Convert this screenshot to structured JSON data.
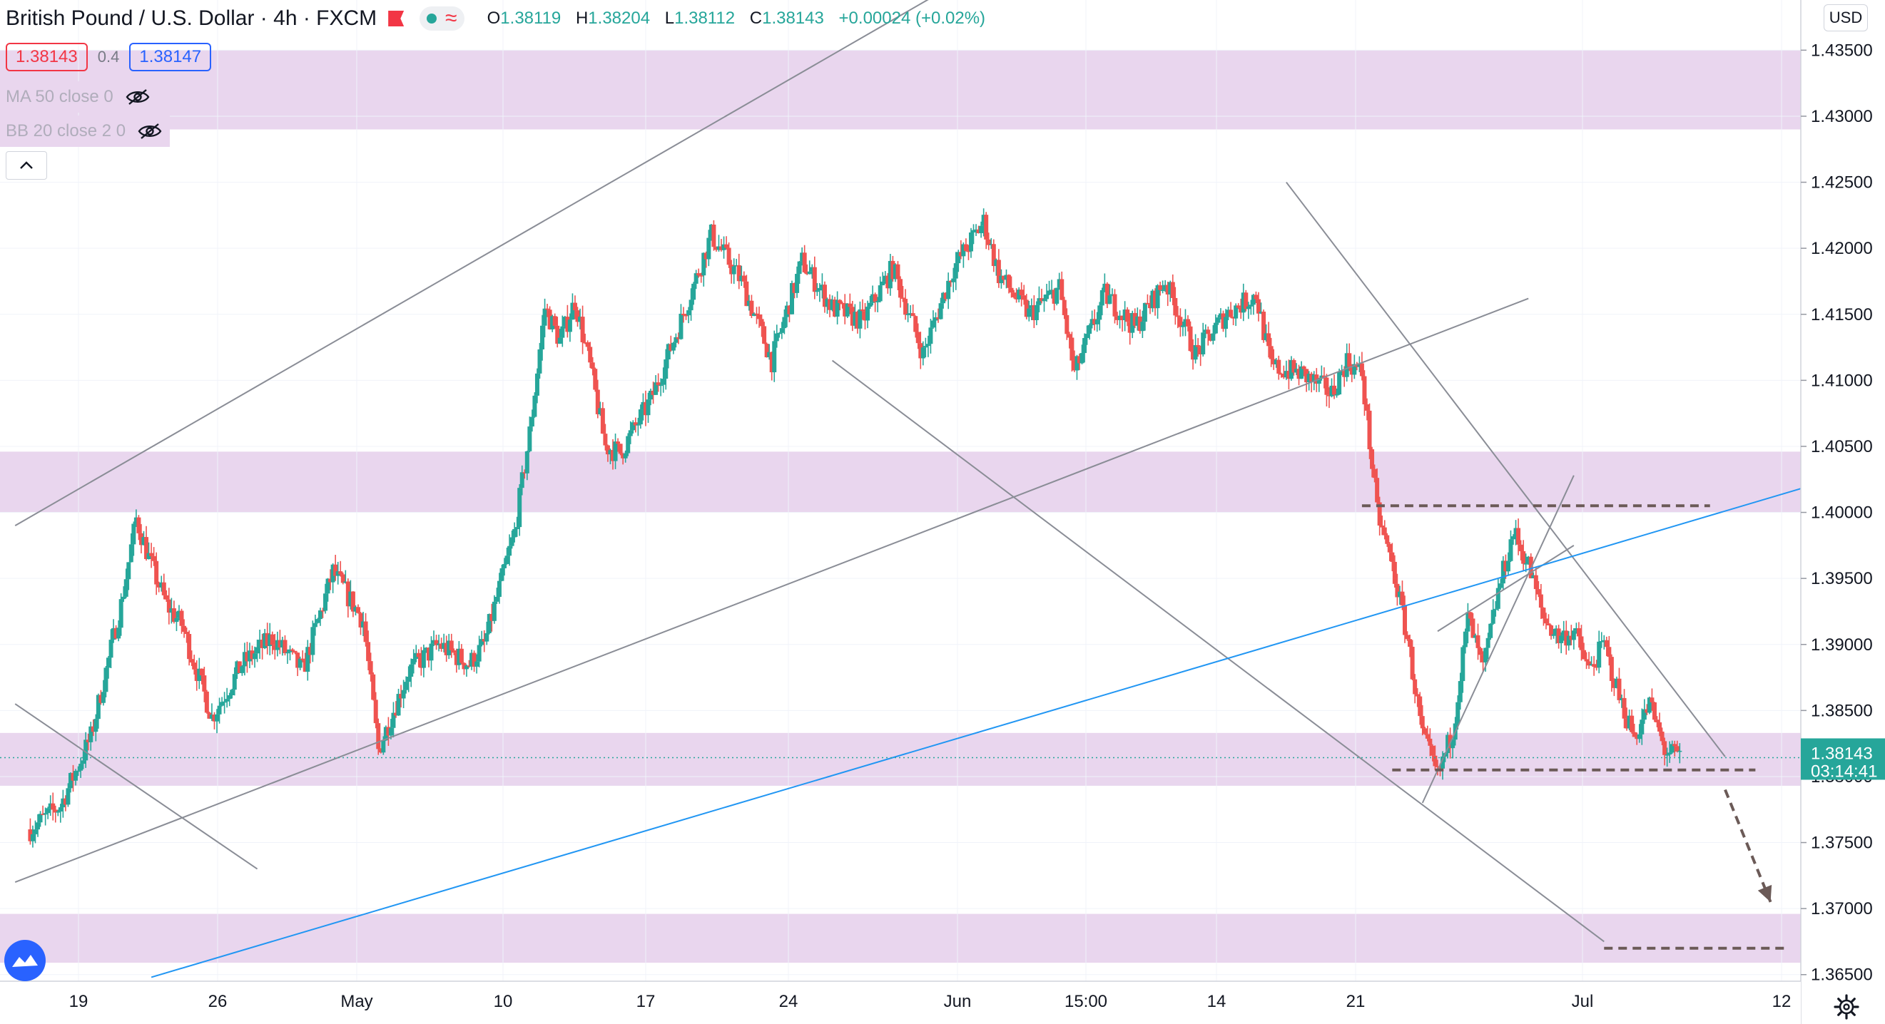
{
  "header": {
    "title": "British Pound / U.S. Dollar · 4h · FXCM",
    "ohlc": [
      {
        "key": "O",
        "value": "1.38119"
      },
      {
        "key": "H",
        "value": "1.38204"
      },
      {
        "key": "L",
        "value": "1.38112"
      },
      {
        "key": "C",
        "value": "1.38143"
      }
    ],
    "change": "+0.00024 (+0.02%)",
    "wave_glyph": "≈",
    "flag_icon": "flag-icon",
    "status_icon": "market-open-dot-icon"
  },
  "trade": {
    "sell_price": "1.38143",
    "spread": "0.4",
    "buy_price": "1.38147"
  },
  "indicators": [
    {
      "label": "MA 50 close 0",
      "icon": "eye-hidden-icon"
    },
    {
      "label": "BB 20 close 2 0",
      "icon": "eye-hidden-icon"
    }
  ],
  "currency": "USD",
  "colors": {
    "up": "#26a69a",
    "down": "#ef5350",
    "zone": "#e9d6ee",
    "trendline": "#9598a1",
    "blue_line": "#2196f3",
    "dashed": "#6b5a57",
    "price_label_bg": "#26a69a"
  },
  "chart_data": {
    "type": "candlestick",
    "title": "British Pound / U.S. Dollar · 4h · FXCM",
    "x_ticks": [
      "19",
      "26",
      "May",
      "10",
      "17",
      "24",
      "Jun",
      "15:00",
      "14",
      "21",
      "Jul",
      "12"
    ],
    "y_ticks": [
      "1.43500",
      "1.43000",
      "1.42500",
      "1.42000",
      "1.41500",
      "1.41000",
      "1.40500",
      "1.40000",
      "1.39500",
      "1.39000",
      "1.38500",
      "1.38000",
      "1.37500",
      "1.37000",
      "1.36500"
    ],
    "y_range": [
      1.3645,
      1.4388
    ],
    "last_price": {
      "value": "1.38143",
      "countdown": "03:14:41"
    },
    "zones": [
      {
        "from": 1.429,
        "to": 1.435
      },
      {
        "from": 1.4,
        "to": 1.4046
      },
      {
        "from": 1.3793,
        "to": 1.3833
      },
      {
        "from": 1.3659,
        "to": 1.3696
      }
    ],
    "close_path": [
      {
        "d": "2021-04-13",
        "c": 1.376
      },
      {
        "d": "2021-04-15",
        "c": 1.3778
      },
      {
        "d": "2021-04-17",
        "c": 1.383
      },
      {
        "d": "2021-04-19",
        "c": 1.393
      },
      {
        "d": "2021-04-20",
        "c": 1.3995
      },
      {
        "d": "2021-04-21",
        "c": 1.396
      },
      {
        "d": "2021-04-22",
        "c": 1.393
      },
      {
        "d": "2021-04-23",
        "c": 1.3915
      },
      {
        "d": "2021-04-25",
        "c": 1.3845
      },
      {
        "d": "2021-04-27",
        "c": 1.3885
      },
      {
        "d": "2021-04-29",
        "c": 1.3905
      },
      {
        "d": "2021-05-01",
        "c": 1.388
      },
      {
        "d": "2021-05-03",
        "c": 1.3955
      },
      {
        "d": "2021-05-05",
        "c": 1.3918
      },
      {
        "d": "2021-05-06",
        "c": 1.382
      },
      {
        "d": "2021-05-08",
        "c": 1.388
      },
      {
        "d": "2021-05-10",
        "c": 1.39
      },
      {
        "d": "2021-05-12",
        "c": 1.3885
      },
      {
        "d": "2021-05-13",
        "c": 1.39
      },
      {
        "d": "2021-05-15",
        "c": 1.3985
      },
      {
        "d": "2021-05-16",
        "c": 1.406
      },
      {
        "d": "2021-05-17",
        "c": 1.4155
      },
      {
        "d": "2021-05-18",
        "c": 1.413
      },
      {
        "d": "2021-05-19",
        "c": 1.416
      },
      {
        "d": "2021-05-20",
        "c": 1.411
      },
      {
        "d": "2021-05-21",
        "c": 1.405
      },
      {
        "d": "2021-05-22",
        "c": 1.4045
      },
      {
        "d": "2021-05-24",
        "c": 1.4085
      },
      {
        "d": "2021-05-26",
        "c": 1.4145
      },
      {
        "d": "2021-05-28",
        "c": 1.421
      },
      {
        "d": "2021-05-30",
        "c": 1.4175
      },
      {
        "d": "2021-06-01",
        "c": 1.4115
      },
      {
        "d": "2021-06-03",
        "c": 1.419
      },
      {
        "d": "2021-06-05",
        "c": 1.4155
      },
      {
        "d": "2021-06-07",
        "c": 1.4145
      },
      {
        "d": "2021-06-09",
        "c": 1.4185
      },
      {
        "d": "2021-06-11",
        "c": 1.412
      },
      {
        "d": "2021-06-13",
        "c": 1.4185
      },
      {
        "d": "2021-06-15",
        "c": 1.422
      },
      {
        "d": "2021-06-16",
        "c": 1.418
      },
      {
        "d": "2021-06-18",
        "c": 1.415
      },
      {
        "d": "2021-06-20",
        "c": 1.417
      },
      {
        "d": "2021-06-21",
        "c": 1.4105
      },
      {
        "d": "2021-06-23",
        "c": 1.4165
      },
      {
        "d": "2021-06-25",
        "c": 1.414
      },
      {
        "d": "2021-06-27",
        "c": 1.4175
      },
      {
        "d": "2021-06-29",
        "c": 1.412
      },
      {
        "d": "2021-07-01",
        "c": 1.415
      },
      {
        "d": "2021-07-03",
        "c": 1.4165
      },
      {
        "d": "2021-07-04",
        "c": 1.411
      },
      {
        "d": "2021-07-06",
        "c": 1.4105
      },
      {
        "d": "2021-07-08",
        "c": 1.409
      },
      {
        "d": "2021-07-09",
        "c": 1.4115
      },
      {
        "d": "2021-07-10",
        "c": 1.4105
      },
      {
        "d": "2021-07-11",
        "c": 1.4
      },
      {
        "d": "2021-07-12",
        "c": 1.396
      },
      {
        "d": "2021-07-13",
        "c": 1.3905
      },
      {
        "d": "2021-07-14",
        "c": 1.383
      },
      {
        "d": "2021-07-15",
        "c": 1.38
      },
      {
        "d": "2021-07-16",
        "c": 1.3835
      },
      {
        "d": "2021-07-17",
        "c": 1.392
      },
      {
        "d": "2021-07-18",
        "c": 1.388
      },
      {
        "d": "2021-07-19",
        "c": 1.394
      },
      {
        "d": "2021-07-20",
        "c": 1.3985
      },
      {
        "d": "2021-07-21",
        "c": 1.396
      },
      {
        "d": "2021-07-22",
        "c": 1.392
      },
      {
        "d": "2021-07-23",
        "c": 1.3905
      },
      {
        "d": "2021-07-24",
        "c": 1.391
      },
      {
        "d": "2021-07-25",
        "c": 1.388
      },
      {
        "d": "2021-07-26",
        "c": 1.39
      },
      {
        "d": "2021-07-27",
        "c": 1.386
      },
      {
        "d": "2021-07-28",
        "c": 1.383
      },
      {
        "d": "2021-07-29",
        "c": 1.3855
      },
      {
        "d": "2021-07-30",
        "c": 1.382
      },
      {
        "d": "2021-07-31",
        "c": 1.3814
      }
    ],
    "annotations": {
      "lines": [
        {
          "kind": "trend",
          "from": {
            "d": "2021-04-12",
            "c": 1.399
          },
          "to": {
            "d": "2021-06-29",
            "c": 1.4505
          }
        },
        {
          "kind": "trend",
          "from": {
            "d": "2021-04-12",
            "c": 1.372
          },
          "to": {
            "d": "2021-07-21",
            "c": 1.4162
          }
        },
        {
          "kind": "trend",
          "from": {
            "d": "2021-04-12",
            "c": 1.3855
          },
          "to": {
            "d": "2021-04-28",
            "c": 1.373
          }
        },
        {
          "kind": "trend",
          "from": {
            "d": "2021-06-05",
            "c": 1.4115
          },
          "to": {
            "d": "2021-07-26",
            "c": 1.3675
          }
        },
        {
          "kind": "trend",
          "from": {
            "d": "2021-07-05",
            "c": 1.425
          },
          "to": {
            "d": "2021-08-03",
            "c": 1.3815
          }
        },
        {
          "kind": "trend",
          "from": {
            "d": "2021-07-14",
            "c": 1.378
          },
          "to": {
            "d": "2021-07-24",
            "c": 1.4028
          }
        },
        {
          "kind": "trend",
          "from": {
            "d": "2021-07-15",
            "c": 1.391
          },
          "to": {
            "d": "2021-07-24",
            "c": 1.3975
          }
        },
        {
          "kind": "trend-blue",
          "from": {
            "d": "2021-04-21",
            "c": 1.3648
          },
          "to": {
            "d": "2021-08-08",
            "c": 1.4018
          }
        },
        {
          "kind": "dashed",
          "from": {
            "d": "2021-07-10",
            "c": 1.4005
          },
          "to": {
            "d": "2021-08-02",
            "c": 1.4005
          }
        },
        {
          "kind": "dashed",
          "from": {
            "d": "2021-07-12",
            "c": 1.3805
          },
          "to": {
            "d": "2021-08-05",
            "c": 1.3805
          }
        },
        {
          "kind": "dashed",
          "from": {
            "d": "2021-07-26",
            "c": 1.367
          },
          "to": {
            "d": "2021-08-07",
            "c": 1.367
          }
        },
        {
          "kind": "arrow",
          "from": {
            "d": "2021-08-03",
            "c": 1.379
          },
          "to": {
            "d": "2021-08-06",
            "c": 1.3705
          }
        }
      ]
    }
  }
}
